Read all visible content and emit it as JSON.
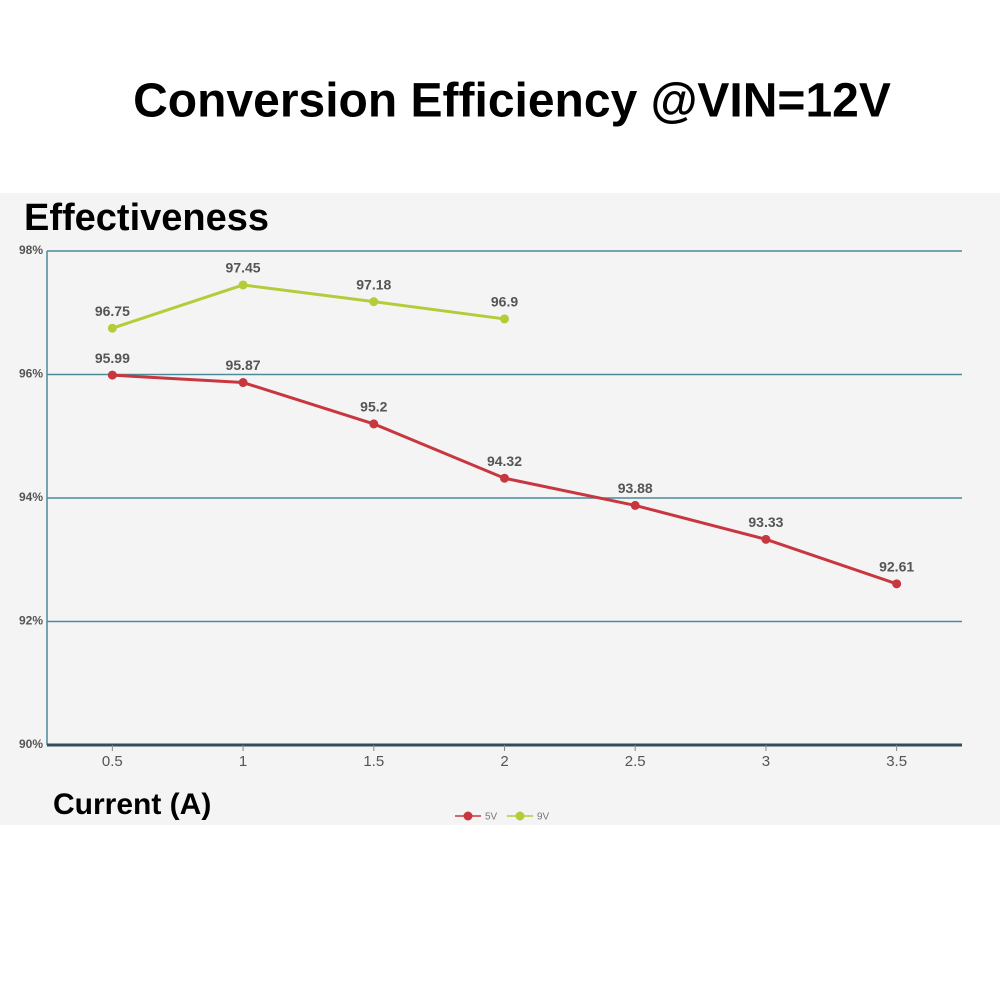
{
  "chart_data": {
    "type": "line",
    "title": "Conversion Efficiency @VIN=12V",
    "ylabel": "Effectiveness",
    "xlabel": "Current (A)",
    "x": [
      0.5,
      1,
      1.5,
      2,
      2.5,
      3,
      3.5
    ],
    "series": [
      {
        "name": "5V",
        "color": "#c8363f",
        "values": [
          95.99,
          95.87,
          95.2,
          94.32,
          93.88,
          93.33,
          92.61
        ]
      },
      {
        "name": "9V",
        "color": "#b5cc3a",
        "values": [
          96.75,
          97.45,
          97.18,
          96.9,
          null,
          null,
          null
        ]
      }
    ],
    "xlim": [
      0.25,
      3.75
    ],
    "xticks": [
      0.5,
      1,
      1.5,
      2,
      2.5,
      3,
      3.5
    ],
    "ylim": [
      90,
      98
    ],
    "yticks": [
      {
        "value": 90,
        "label": "90%"
      },
      {
        "value": 92,
        "label": "92%"
      },
      {
        "value": 94,
        "label": "94%"
      },
      {
        "value": 96,
        "label": "96%"
      },
      {
        "value": 98,
        "label": "98%"
      }
    ],
    "grid": true,
    "legend": "bottom"
  }
}
